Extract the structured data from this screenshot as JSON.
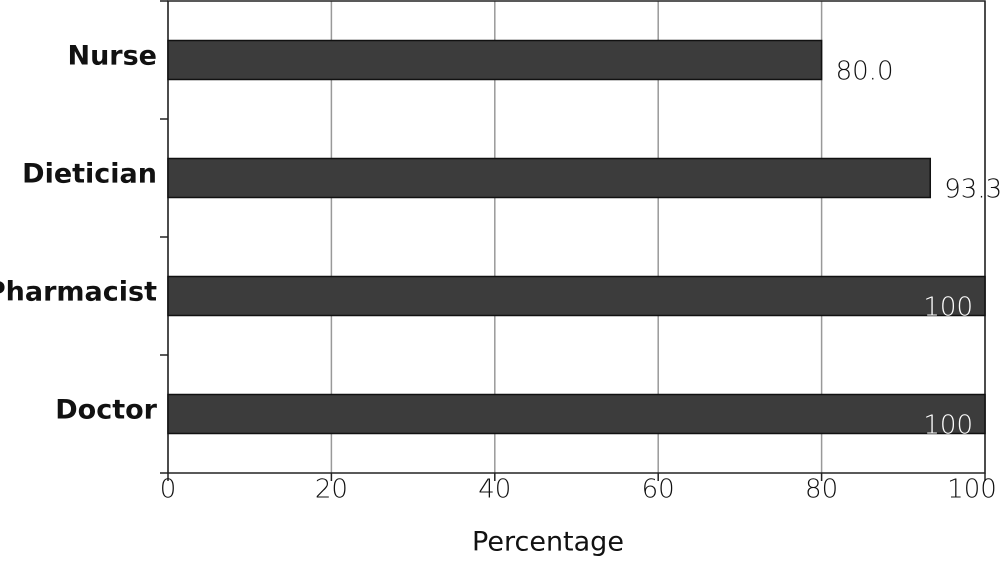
{
  "chart_data": {
    "type": "barh",
    "categories": [
      "Nurse",
      "Dietician",
      "Pharmacist",
      "Doctor"
    ],
    "values": [
      80.0,
      93.3,
      100,
      100
    ],
    "value_labels": [
      "80.0",
      "93.3",
      "100",
      "100"
    ],
    "color": "#3c3c3c",
    "xlim": [
      0,
      100
    ],
    "xticks": [
      0,
      20,
      40,
      60,
      80,
      100
    ],
    "xlabel": "Percentage",
    "grid": true
  }
}
